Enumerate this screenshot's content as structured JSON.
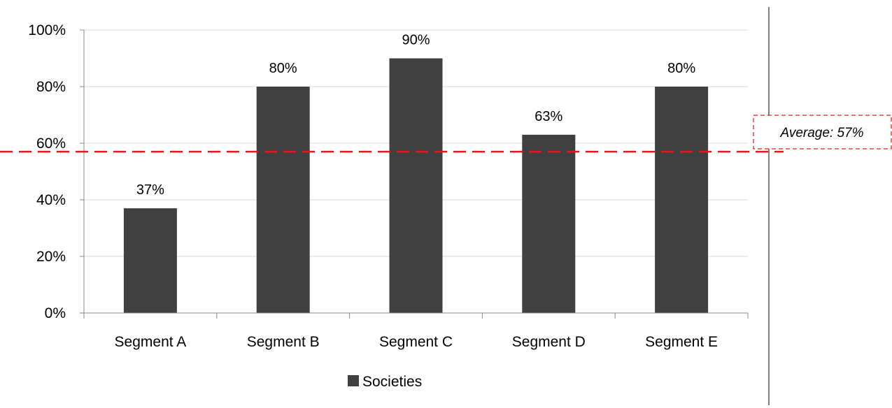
{
  "chart_data": {
    "type": "bar",
    "categories": [
      "Segment A",
      "Segment B",
      "Segment C",
      "Segment D",
      "Segment E"
    ],
    "series": [
      {
        "name": "Societies",
        "values": [
          37,
          80,
          90,
          63,
          80
        ]
      }
    ],
    "data_labels": [
      "37%",
      "80%",
      "90%",
      "63%",
      "80%"
    ],
    "y_ticks": [
      "0%",
      "20%",
      "40%",
      "60%",
      "80%",
      "100%"
    ],
    "ylim": [
      0,
      100
    ],
    "grid": true,
    "legend": {
      "position": "bottom",
      "entries": [
        "Societies"
      ]
    },
    "average": {
      "value": 57,
      "label": "Average: 57%"
    },
    "colors": {
      "bar": "#404040",
      "average_line": "#e0191b",
      "grid": "#d9d9d9",
      "axis": "#888888"
    }
  }
}
